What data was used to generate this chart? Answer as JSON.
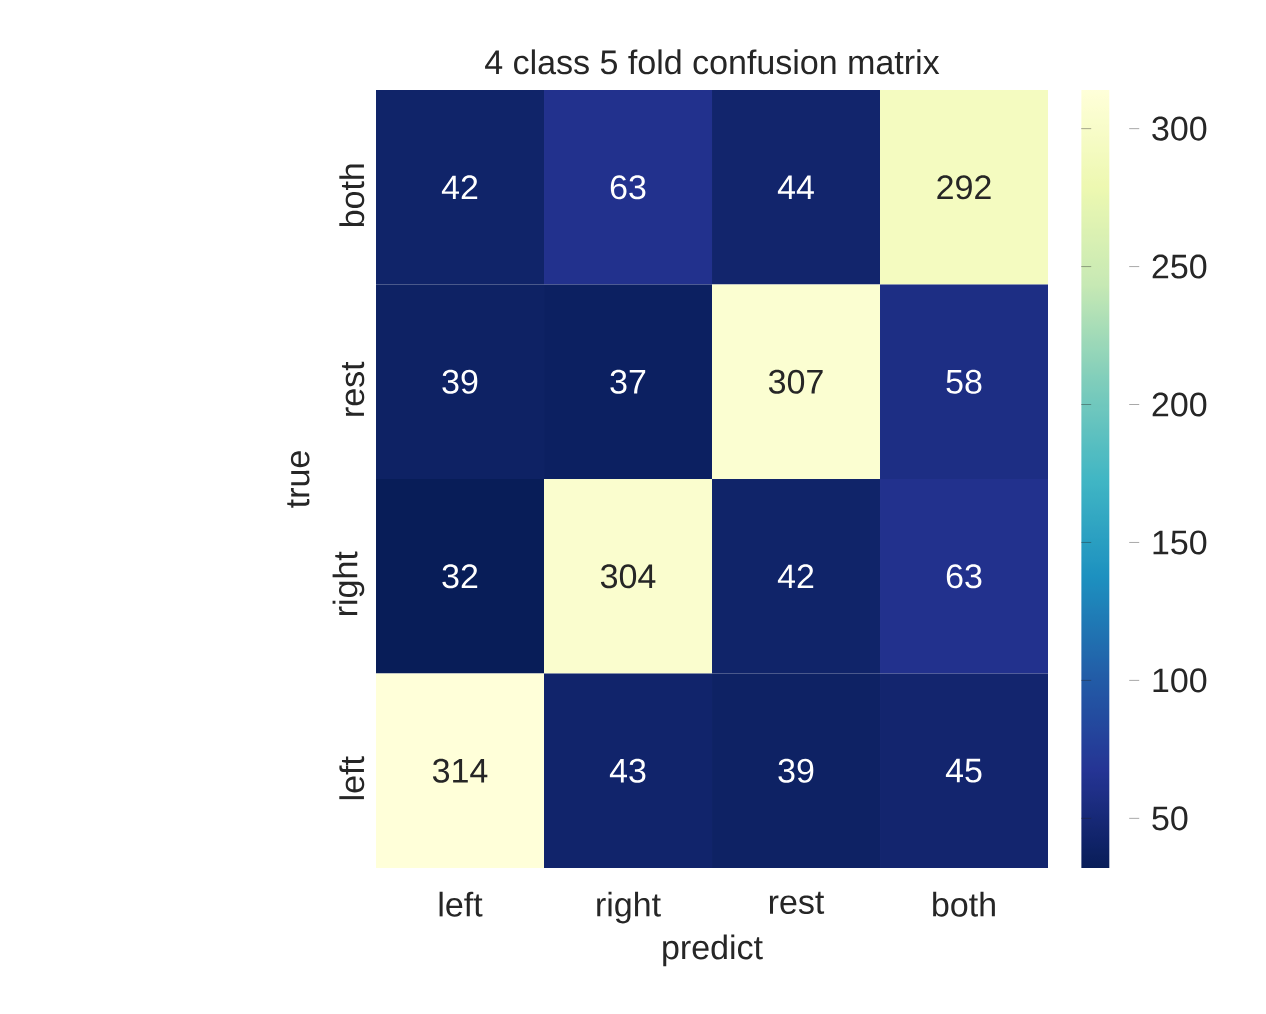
{
  "chart_data": {
    "type": "heatmap",
    "title": "4 class 5 fold confusion matrix",
    "xlabel": "predict",
    "ylabel": "true",
    "categories": [
      "left",
      "right",
      "rest",
      "both"
    ],
    "y_categories": [
      "both",
      "rest",
      "right",
      "left"
    ],
    "cells": [
      [
        42,
        63,
        44,
        292
      ],
      [
        39,
        37,
        307,
        58
      ],
      [
        32,
        304,
        42,
        63
      ],
      [
        314,
        43,
        39,
        45
      ]
    ],
    "clim": [
      32,
      314
    ],
    "cticks": [
      50,
      100,
      150,
      200,
      250,
      300
    ],
    "data_labels": true
  }
}
